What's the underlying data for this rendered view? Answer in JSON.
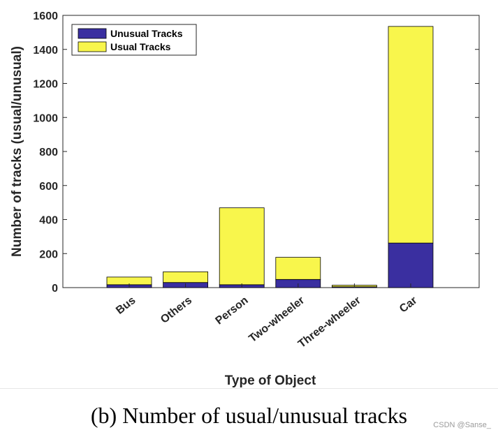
{
  "chart_data": {
    "type": "bar",
    "stacked": true,
    "categories": [
      "Bus",
      "Others",
      "Person",
      "Two-wheeler",
      "Three-wheeler",
      "Car"
    ],
    "series": [
      {
        "name": "Unusual Tracks",
        "color": "#3a2fa0",
        "values": [
          17,
          30,
          17,
          48,
          5,
          262
        ]
      },
      {
        "name": "Usual Tracks",
        "color": "#f8f64c",
        "values": [
          45,
          63,
          452,
          130,
          9,
          1273
        ]
      }
    ],
    "xlabel": "Type of Object",
    "ylabel": "Number of tracks (usual/unusual)",
    "ylim": [
      0,
      1600
    ],
    "yticks": [
      0,
      200,
      400,
      600,
      800,
      1000,
      1200,
      1400,
      1600
    ],
    "legend_position": "top-left",
    "grid": false
  },
  "caption": "(b)  Number of usual/unusual tracks",
  "watermark": "CSDN @Sanse_"
}
